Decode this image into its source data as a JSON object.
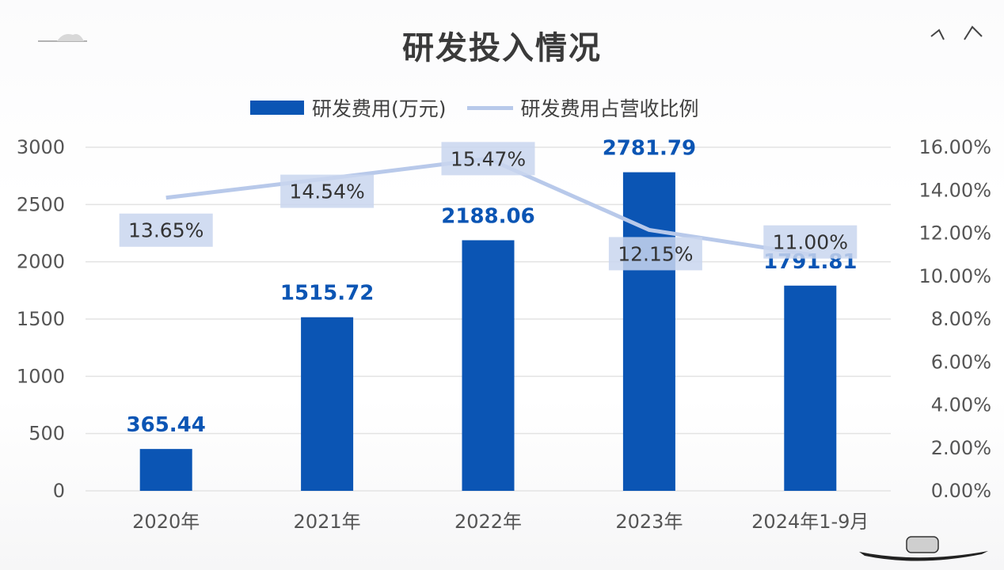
{
  "title": "研发投入情况",
  "legend": {
    "bar_label": "研发费用(万元)",
    "line_label": "研发费用占营收比例"
  },
  "colors": {
    "bar": "#0b55b4",
    "line": "#b8c9ea",
    "label_box": "#c9d6ee"
  },
  "chart_data": {
    "type": "bar",
    "categories": [
      "2020年",
      "2021年",
      "2022年",
      "2023年",
      "2024年1-9月"
    ],
    "series": [
      {
        "name": "研发费用(万元)",
        "type": "bar",
        "axis": "left",
        "values": [
          365.44,
          1515.72,
          2188.06,
          2781.79,
          1791.81
        ],
        "labels": [
          "365.44",
          "1515.72",
          "2188.06",
          "2781.79",
          "1791.81"
        ]
      },
      {
        "name": "研发费用占营收比例",
        "type": "line",
        "axis": "right",
        "values": [
          13.65,
          14.54,
          15.47,
          12.15,
          11.0
        ],
        "labels": [
          "13.65%",
          "14.54%",
          "15.47%",
          "12.15%",
          "11.00%"
        ]
      }
    ],
    "y_left": {
      "ylim": [
        0,
        3000
      ],
      "ticks": [
        "0",
        "500",
        "1000",
        "1500",
        "2000",
        "2500",
        "3000"
      ]
    },
    "y_right": {
      "ylim": [
        0,
        16
      ],
      "ticks": [
        "0.00%",
        "2.00%",
        "4.00%",
        "6.00%",
        "8.00%",
        "10.00%",
        "12.00%",
        "14.00%",
        "16.00%"
      ]
    },
    "grid": true,
    "legend_position": "top"
  }
}
